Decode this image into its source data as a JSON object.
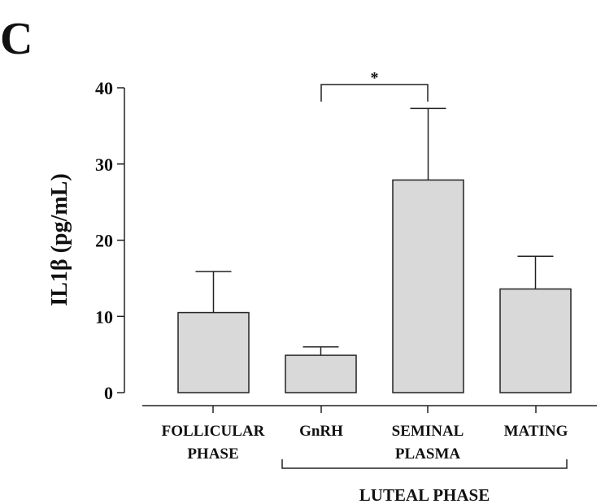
{
  "panel_label": "C",
  "chart_data": {
    "type": "bar",
    "ylabel": "IL1β (pg/mL)",
    "ylim": [
      0,
      40
    ],
    "yticks": [
      0,
      10,
      20,
      30,
      40
    ],
    "categories": [
      [
        "FOLLICULAR",
        "PHASE"
      ],
      [
        "GnRH"
      ],
      [
        "SEMINAL",
        "PLASMA"
      ],
      [
        "MATING"
      ]
    ],
    "values": [
      10.5,
      4.9,
      27.9,
      13.6
    ],
    "error_upper": [
      15.9,
      6.0,
      37.3,
      17.9
    ],
    "bar_color": "#d9d9d9",
    "significance": {
      "from": 1,
      "to": 2,
      "label": "*"
    },
    "group_bracket": {
      "from": 1,
      "to": 3,
      "label": "LUTEAL PHASE"
    }
  }
}
